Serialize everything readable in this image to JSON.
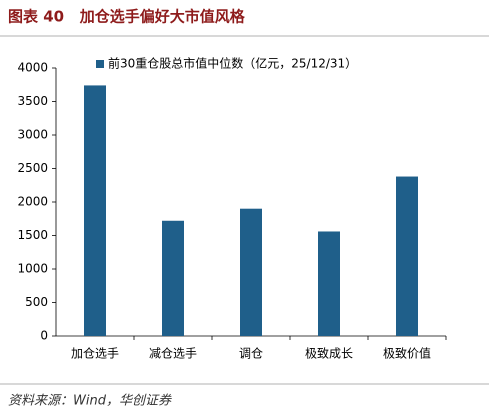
{
  "chart_data": {
    "type": "bar",
    "title": "图表 40   加仓选手偏好大市值风格",
    "legend": "前30重仓股总市值中位数（亿元，25/12/31）",
    "categories": [
      "加仓选手",
      "减仓选手",
      "调仓",
      "极致成长",
      "极致价值"
    ],
    "values": [
      3740,
      1720,
      1900,
      1560,
      2380
    ],
    "color": "#1f5f8a",
    "ylim": [
      0,
      4000
    ],
    "yticks": [
      0,
      500,
      1000,
      1500,
      2000,
      2500,
      3000,
      3500,
      4000
    ],
    "grid": false,
    "source": "资料来源：Wind，华创证券"
  }
}
